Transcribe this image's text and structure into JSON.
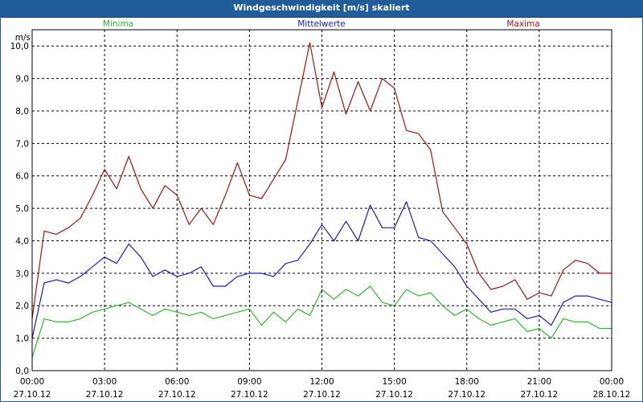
{
  "window": {
    "title": "Windgeschwindigkeit [m/s] skaliert"
  },
  "chart_data": {
    "type": "line",
    "title": "Windgeschwindigkeit [m/s] skaliert",
    "ylabel": "m/s",
    "ylim": [
      0,
      10.5
    ],
    "xlim": [
      0,
      24
    ],
    "grid": true,
    "x_ticks": [
      {
        "t": 0,
        "time": "00:00",
        "date": "27.10.12"
      },
      {
        "t": 3,
        "time": "03:00",
        "date": "27.10.12"
      },
      {
        "t": 6,
        "time": "06:00",
        "date": "27.10.12"
      },
      {
        "t": 9,
        "time": "09:00",
        "date": "27.10.12"
      },
      {
        "t": 12,
        "time": "12:00",
        "date": "27.10.12"
      },
      {
        "t": 15,
        "time": "15:00",
        "date": "27.10.12"
      },
      {
        "t": 18,
        "time": "18:00",
        "date": "27.10.12"
      },
      {
        "t": 21,
        "time": "21:00",
        "date": "27.10.12"
      },
      {
        "t": 24,
        "time": "00:00",
        "date": "28.10.12"
      }
    ],
    "y_ticks": [
      {
        "v": 0,
        "label": "0,0"
      },
      {
        "v": 1,
        "label": "1,0"
      },
      {
        "v": 2,
        "label": "2,0"
      },
      {
        "v": 3,
        "label": "3,0"
      },
      {
        "v": 4,
        "label": "4,0"
      },
      {
        "v": 5,
        "label": "5,0"
      },
      {
        "v": 6,
        "label": "6,0"
      },
      {
        "v": 7,
        "label": "7,0"
      },
      {
        "v": 8,
        "label": "8,0"
      },
      {
        "v": 9,
        "label": "9,0"
      },
      {
        "v": 10,
        "label": "10,0"
      }
    ],
    "series": [
      {
        "name": "Minima",
        "color": "#2eb82e",
        "legend_position": "top-left",
        "x": [
          0,
          0.5,
          1,
          1.5,
          2,
          2.5,
          3,
          3.5,
          4,
          4.5,
          5,
          5.5,
          6,
          6.5,
          7,
          7.5,
          8,
          8.5,
          9,
          9.5,
          10,
          10.5,
          11,
          11.5,
          12,
          12.5,
          13,
          13.5,
          14,
          14.5,
          15,
          15.5,
          16,
          16.5,
          17,
          17.5,
          18,
          18.5,
          19,
          19.5,
          20,
          20.5,
          21,
          21.5,
          22,
          22.5,
          23,
          23.5,
          24
        ],
        "values": [
          0.4,
          1.6,
          1.5,
          1.5,
          1.6,
          1.8,
          1.9,
          2.0,
          2.1,
          1.9,
          1.7,
          1.9,
          1.8,
          1.7,
          1.8,
          1.6,
          1.7,
          1.8,
          1.9,
          1.4,
          1.8,
          1.5,
          1.9,
          1.7,
          2.5,
          2.2,
          2.5,
          2.3,
          2.6,
          2.1,
          2.0,
          2.5,
          2.3,
          2.4,
          2.0,
          1.7,
          1.9,
          1.6,
          1.4,
          1.5,
          1.6,
          1.2,
          1.3,
          1.0,
          1.6,
          1.5,
          1.5,
          1.3,
          1.3
        ]
      },
      {
        "name": "Mittelwerte",
        "color": "#1a1acc",
        "legend_position": "top-center",
        "x": [
          0,
          0.5,
          1,
          1.5,
          2,
          2.5,
          3,
          3.5,
          4,
          4.5,
          5,
          5.5,
          6,
          6.5,
          7,
          7.5,
          8,
          8.5,
          9,
          9.5,
          10,
          10.5,
          11,
          11.5,
          12,
          12.5,
          13,
          13.5,
          14,
          14.5,
          15,
          15.5,
          16,
          16.5,
          17,
          17.5,
          18,
          18.5,
          19,
          19.5,
          20,
          20.5,
          21,
          21.5,
          22,
          22.5,
          23,
          23.5,
          24
        ],
        "values": [
          1.0,
          2.7,
          2.8,
          2.7,
          2.9,
          3.2,
          3.5,
          3.3,
          3.9,
          3.5,
          2.9,
          3.1,
          2.9,
          3.0,
          3.2,
          2.6,
          2.6,
          2.9,
          3.0,
          3.0,
          2.9,
          3.3,
          3.4,
          3.9,
          4.5,
          4.0,
          4.6,
          4.0,
          5.1,
          4.4,
          4.4,
          5.2,
          4.1,
          4.0,
          3.6,
          3.2,
          2.6,
          2.2,
          1.8,
          1.9,
          1.9,
          1.6,
          1.7,
          1.4,
          2.1,
          2.3,
          2.3,
          2.2,
          2.1
        ]
      },
      {
        "name": "Maxima",
        "color": "#aa1111",
        "legend_position": "top-right",
        "x": [
          0,
          0.5,
          1,
          1.5,
          2,
          2.5,
          3,
          3.5,
          4,
          4.5,
          5,
          5.5,
          6,
          6.5,
          7,
          7.5,
          8,
          8.5,
          9,
          9.5,
          10,
          10.5,
          11,
          11.5,
          12,
          12.5,
          13,
          13.5,
          14,
          14.5,
          15,
          15.5,
          16,
          16.5,
          17,
          17.5,
          18,
          18.5,
          19,
          19.5,
          20,
          20.5,
          21,
          21.5,
          22,
          22.5,
          23,
          23.5,
          24
        ],
        "values": [
          1.6,
          4.3,
          4.2,
          4.4,
          4.7,
          5.4,
          6.2,
          5.6,
          6.6,
          5.6,
          5.0,
          5.7,
          5.4,
          4.5,
          5.0,
          4.5,
          5.4,
          6.4,
          5.4,
          5.3,
          5.9,
          6.5,
          8.3,
          10.1,
          8.1,
          9.2,
          7.9,
          8.9,
          8.0,
          9.0,
          8.7,
          7.4,
          7.3,
          6.8,
          4.9,
          4.4,
          3.9,
          3.0,
          2.5,
          2.6,
          2.8,
          2.2,
          2.4,
          2.3,
          3.1,
          3.4,
          3.3,
          3.0,
          3.0
        ]
      }
    ]
  }
}
